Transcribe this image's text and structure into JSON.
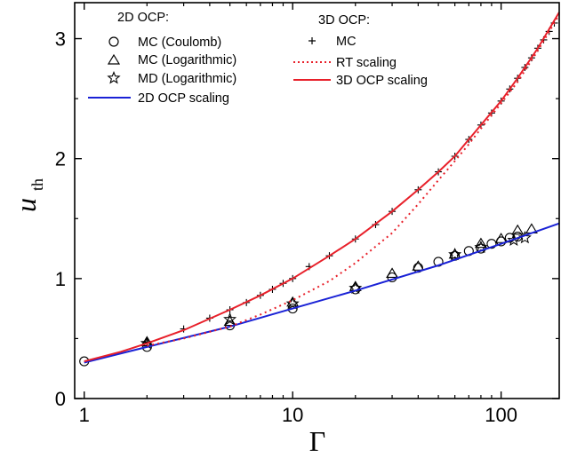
{
  "chart_data": {
    "type": "scatter",
    "title": "",
    "xlabel": "Γ",
    "ylabel_main": "u",
    "ylabel_sub": "th",
    "xscale": "log",
    "xlim": [
      0.9,
      190
    ],
    "ylim": [
      0,
      3.3
    ],
    "x_ticks": [
      1,
      10,
      100
    ],
    "x_tick_labels": [
      "1",
      "10",
      "100"
    ],
    "y_ticks": [
      0,
      1,
      2,
      3
    ],
    "y_tick_labels": [
      "0",
      "1",
      "2",
      "3"
    ],
    "grid": false,
    "legend_left": {
      "heading": "2D OCP:",
      "entries": [
        "MC (Coulomb)",
        "MC (Logarithmic)",
        "MD (Logarithmic)",
        "2D OCP scaling"
      ]
    },
    "legend_right": {
      "heading": "3D OCP:",
      "entries": [
        "MC",
        "RT scaling",
        "3D OCP scaling"
      ]
    },
    "colors": {
      "red": "#e8202a",
      "blue": "#1a22d6",
      "black": "#000000"
    },
    "series": [
      {
        "name": "MC (Coulomb)",
        "marker": "circle",
        "x": [
          1,
          2,
          5,
          10,
          20,
          30,
          40,
          50,
          60,
          70,
          80,
          90,
          100,
          110,
          120
        ],
        "y": [
          0.31,
          0.43,
          0.61,
          0.75,
          0.91,
          1.01,
          1.09,
          1.14,
          1.19,
          1.23,
          1.25,
          1.29,
          1.31,
          1.34,
          1.35
        ]
      },
      {
        "name": "MC (Logarithmic)",
        "marker": "triangle",
        "x": [
          2,
          5,
          10,
          20,
          30,
          40,
          60,
          80,
          100,
          120,
          140
        ],
        "y": [
          0.47,
          0.64,
          0.8,
          0.93,
          1.04,
          1.1,
          1.2,
          1.29,
          1.33,
          1.4,
          1.41
        ]
      },
      {
        "name": "MD (Logarithmic)",
        "marker": "star",
        "x": [
          2,
          5,
          10,
          20,
          60,
          80,
          115,
          130
        ],
        "y": [
          0.46,
          0.66,
          0.79,
          0.92,
          1.2,
          1.26,
          1.32,
          1.34
        ]
      },
      {
        "name": "2D OCP scaling",
        "marker": "line",
        "x": [
          1,
          2,
          5,
          10,
          20,
          50,
          100,
          190
        ],
        "y": [
          0.3,
          0.43,
          0.6,
          0.75,
          0.9,
          1.11,
          1.29,
          1.46
        ]
      },
      {
        "name": "MC",
        "marker": "plus",
        "x": [
          2,
          3,
          4,
          5,
          6,
          7,
          8,
          9,
          10,
          12,
          15,
          20,
          25,
          30,
          40,
          50,
          60,
          70,
          80,
          90,
          100,
          110,
          120,
          130,
          140,
          150,
          160,
          170,
          180
        ],
        "y": [
          0.47,
          0.58,
          0.67,
          0.74,
          0.8,
          0.86,
          0.91,
          0.96,
          1.0,
          1.1,
          1.19,
          1.33,
          1.45,
          1.56,
          1.74,
          1.89,
          2.02,
          2.16,
          2.28,
          2.38,
          2.48,
          2.58,
          2.67,
          2.76,
          2.84,
          2.92,
          2.99,
          3.06,
          3.13
        ]
      },
      {
        "name": "RT scaling",
        "marker": "dotted-line",
        "x": [
          2,
          3,
          5,
          7,
          10,
          15,
          20,
          30,
          40,
          50,
          60,
          70,
          80,
          100,
          120,
          150,
          190
        ],
        "y": [
          0.44,
          0.5,
          0.6,
          0.7,
          0.82,
          0.98,
          1.13,
          1.38,
          1.62,
          1.82,
          1.98,
          2.12,
          2.25,
          2.46,
          2.64,
          2.9,
          3.2
        ]
      },
      {
        "name": "3D OCP scaling",
        "marker": "line",
        "x": [
          1,
          1.5,
          2,
          3,
          5,
          7,
          10,
          15,
          20,
          30,
          40,
          50,
          60,
          70,
          80,
          100,
          120,
          150,
          190
        ],
        "y": [
          0.31,
          0.39,
          0.46,
          0.57,
          0.74,
          0.86,
          1.0,
          1.19,
          1.33,
          1.56,
          1.74,
          1.89,
          2.02,
          2.16,
          2.28,
          2.48,
          2.67,
          2.92,
          3.22
        ]
      }
    ]
  }
}
